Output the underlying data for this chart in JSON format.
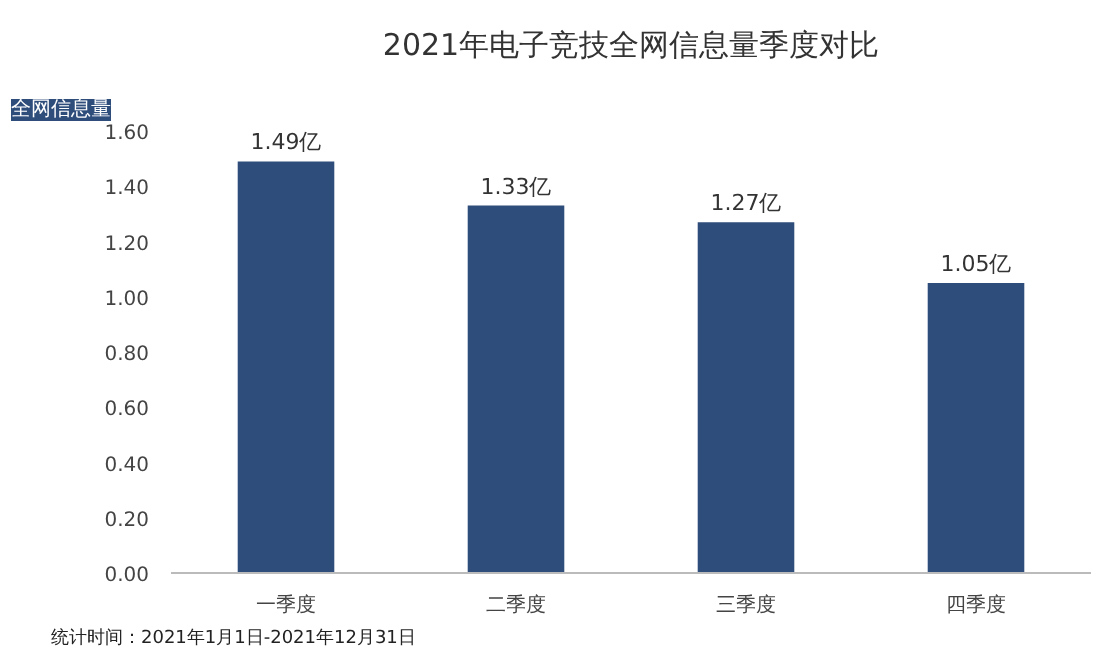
{
  "chart_data": {
    "type": "bar",
    "title": "2021年电子竞技全网信息量季度对比",
    "categories": [
      "一季度",
      "二季度",
      "三季度",
      "四季度"
    ],
    "values": [
      1.49,
      1.33,
      1.27,
      1.05
    ],
    "value_labels": [
      "1.49亿",
      "1.33亿",
      "1.27亿",
      "1.05亿"
    ],
    "color": "#2e4d7b",
    "ylim": [
      0,
      1.6
    ],
    "yticks": [
      {
        "value": 0,
        "label": "0.00"
      },
      {
        "value": 0.2,
        "label": "0.20"
      },
      {
        "value": 0.4,
        "label": "0.40"
      },
      {
        "value": 0.6,
        "label": "0.60"
      },
      {
        "value": 0.8,
        "label": "0.80"
      },
      {
        "value": 1.0,
        "label": "1.00"
      },
      {
        "value": 1.2,
        "label": "1.20"
      },
      {
        "value": 1.4,
        "label": "1.40"
      },
      {
        "value": 1.6,
        "label": "1.60"
      }
    ],
    "grid": false,
    "annotations": [
      "全网信息量",
      "统计时间：2021年1月1日-2021年12月31日"
    ]
  }
}
